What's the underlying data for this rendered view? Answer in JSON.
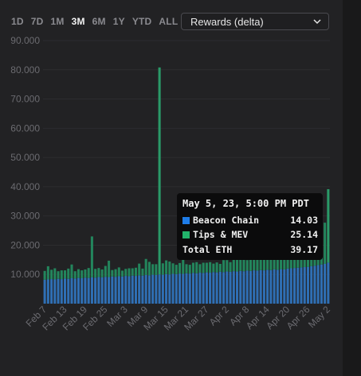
{
  "ranges": [
    "1D",
    "7D",
    "1M",
    "3M",
    "6M",
    "1Y",
    "YTD",
    "ALL"
  ],
  "active_range": "3M",
  "select": {
    "value": "Rewards (delta)"
  },
  "colors": {
    "beacon": "#2f6fb4",
    "tips": "#23855c",
    "tips_spike": "#2a9a68",
    "grid": "#2c2c2f",
    "axis_text": "#6b6b70",
    "accent": "#1e7ce8",
    "tips_swatch": "#22b36b"
  },
  "tooltip": {
    "title": "May 5, 23, 5:00 PM PDT",
    "rows": [
      {
        "label": "Beacon Chain",
        "value": "14.03",
        "icon": "blue-square-icon"
      },
      {
        "label": "Tips & MEV",
        "value": "25.14",
        "icon": "green-square-icon"
      }
    ],
    "total_label": "Total ETH",
    "total_value": "39.17"
  },
  "chart_data": {
    "type": "bar",
    "stacked": true,
    "ylim": [
      0,
      90000
    ],
    "yticks": [
      "10.000",
      "20.000",
      "30.000",
      "40.000",
      "50.000",
      "60.000",
      "70.000",
      "80.000",
      "90.000"
    ],
    "ytick_values": [
      10000,
      20000,
      30000,
      40000,
      50000,
      60000,
      70000,
      80000,
      90000
    ],
    "xtick_labels": [
      "Feb 7",
      "Feb 13",
      "Feb 19",
      "Feb 25",
      "Mar 3",
      "Mar 9",
      "Mar 15",
      "Mar 21",
      "Mar 27",
      "Apr 2",
      "Apr 8",
      "Apr 14",
      "Apr 20",
      "Apr 26",
      "May 2"
    ],
    "xtick_indices": [
      0,
      6,
      12,
      18,
      24,
      30,
      36,
      42,
      48,
      54,
      60,
      66,
      72,
      78,
      84
    ],
    "grid": true,
    "series": [
      {
        "name": "Beacon Chain",
        "values": [
          8200,
          8300,
          8400,
          8300,
          8500,
          8400,
          8600,
          8500,
          8700,
          8600,
          8800,
          8700,
          8900,
          8800,
          9000,
          8900,
          9100,
          9000,
          9200,
          9100,
          9300,
          9200,
          9400,
          9300,
          9500,
          9400,
          9600,
          9500,
          9700,
          9600,
          9800,
          9700,
          9900,
          9800,
          10000,
          9900,
          10100,
          10000,
          10200,
          10100,
          10300,
          10200,
          10400,
          10300,
          10500,
          10400,
          10600,
          10500,
          10700,
          10600,
          10800,
          10700,
          10900,
          10800,
          11000,
          10900,
          11100,
          11000,
          11200,
          11100,
          11300,
          11200,
          11400,
          11300,
          11500,
          11400,
          11600,
          11500,
          11700,
          11600,
          11800,
          11700,
          12000,
          12100,
          12200,
          12300,
          12400,
          12500,
          12600,
          12800,
          13000,
          13200,
          13400,
          13600,
          14030
        ]
      },
      {
        "name": "Tips & MEV",
        "values": [
          3000,
          4500,
          3200,
          3800,
          2600,
          3000,
          2800,
          3500,
          4700,
          2500,
          3000,
          2700,
          2800,
          3400,
          14000,
          3000,
          3100,
          2700,
          3700,
          5600,
          2200,
          2600,
          3000,
          2000,
          2400,
          2700,
          2500,
          2800,
          4000,
          2400,
          5500,
          4600,
          3600,
          3700,
          70800,
          3900,
          4700,
          4400,
          3600,
          3200,
          3600,
          5200,
          3100,
          3000,
          3500,
          3800,
          2900,
          3500,
          3300,
          3600,
          2900,
          3400,
          2700,
          4100,
          3900,
          3300,
          3900,
          4000,
          4200,
          4400,
          3600,
          3800,
          4500,
          4700,
          4700,
          4400,
          7300,
          3900,
          4500,
          10200,
          4200,
          10800,
          4900,
          5700,
          6100,
          5300,
          5700,
          8700,
          9700,
          8800,
          9600,
          13900,
          13400,
          14100,
          25140
        ]
      }
    ]
  }
}
